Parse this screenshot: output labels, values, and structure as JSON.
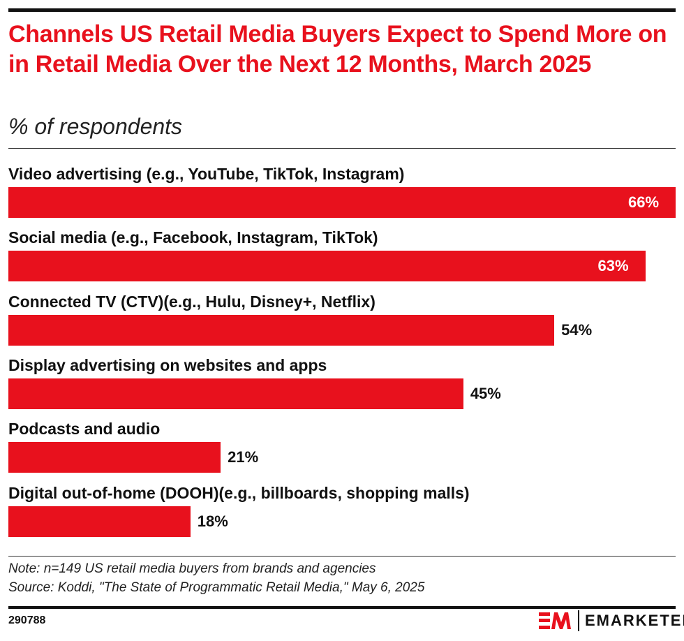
{
  "title": "Channels US Retail Media Buyers Expect to Spend More on in Retail Media Over the Next 12 Months, March 2025",
  "subtitle": "% of respondents",
  "chart_data": {
    "type": "bar",
    "orientation": "horizontal",
    "categories": [
      "Video advertising (e.g., YouTube, TikTok, Instagram)",
      "Social media (e.g., Facebook, Instagram, TikTok)",
      "Connected TV (CTV)(e.g., Hulu, Disney+, Netflix)",
      "Display advertising on websites and apps",
      "Podcasts and audio",
      "Digital out-of-home (DOOH)(e.g., billboards, shopping malls)"
    ],
    "values": [
      66,
      63,
      54,
      45,
      21,
      18
    ],
    "labels": [
      "66%",
      "63%",
      "54%",
      "45%",
      "21%",
      "18%"
    ],
    "bar_color": "#e8111d",
    "grid": false
  },
  "note": "Note: n=149 US retail media buyers from brands and agencies",
  "source": "Source: Koddi, \"The State of Programmatic Retail Media,\" May 6, 2025",
  "chart_id": "290788",
  "brand": "EMARKETER"
}
